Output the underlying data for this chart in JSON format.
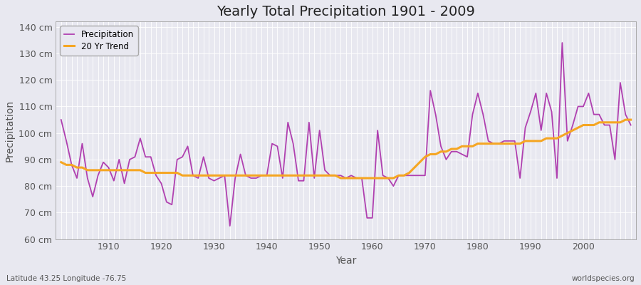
{
  "title": "Yearly Total Precipitation 1901 - 2009",
  "xlabel": "Year",
  "ylabel": "Precipitation",
  "subtitle": "Latitude 43.25 Longitude -76.75",
  "watermark": "worldspecies.org",
  "ylim": [
    60,
    142
  ],
  "xlim": [
    1900,
    2010
  ],
  "ytick_vals": [
    60,
    70,
    80,
    90,
    100,
    110,
    120,
    130,
    140
  ],
  "xtick_vals": [
    1910,
    1920,
    1930,
    1940,
    1950,
    1960,
    1970,
    1980,
    1990,
    2000
  ],
  "years": [
    1901,
    1902,
    1903,
    1904,
    1905,
    1906,
    1907,
    1908,
    1909,
    1910,
    1911,
    1912,
    1913,
    1914,
    1915,
    1916,
    1917,
    1918,
    1919,
    1920,
    1921,
    1922,
    1923,
    1924,
    1925,
    1926,
    1927,
    1928,
    1929,
    1930,
    1931,
    1932,
    1933,
    1934,
    1935,
    1936,
    1937,
    1938,
    1939,
    1940,
    1941,
    1942,
    1943,
    1944,
    1945,
    1946,
    1947,
    1948,
    1949,
    1950,
    1951,
    1952,
    1953,
    1954,
    1955,
    1956,
    1957,
    1958,
    1959,
    1960,
    1961,
    1962,
    1963,
    1964,
    1965,
    1966,
    1967,
    1968,
    1969,
    1970,
    1971,
    1972,
    1973,
    1974,
    1975,
    1976,
    1977,
    1978,
    1979,
    1980,
    1981,
    1982,
    1983,
    1984,
    1985,
    1986,
    1987,
    1988,
    1989,
    1990,
    1991,
    1992,
    1993,
    1994,
    1995,
    1996,
    1997,
    1998,
    1999,
    2000,
    2001,
    2002,
    2003,
    2004,
    2005,
    2006,
    2007,
    2008,
    2009
  ],
  "precipitation": [
    105,
    97,
    88,
    83,
    96,
    83,
    76,
    84,
    89,
    87,
    82,
    90,
    81,
    90,
    91,
    98,
    91,
    91,
    84,
    81,
    74,
    73,
    90,
    91,
    95,
    84,
    83,
    91,
    83,
    82,
    83,
    84,
    65,
    83,
    92,
    84,
    83,
    83,
    84,
    84,
    96,
    95,
    83,
    104,
    96,
    82,
    82,
    104,
    83,
    101,
    86,
    84,
    84,
    84,
    83,
    84,
    83,
    83,
    68,
    68,
    101,
    84,
    83,
    80,
    84,
    84,
    84,
    84,
    84,
    84,
    116,
    107,
    95,
    90,
    93,
    93,
    92,
    91,
    107,
    115,
    107,
    97,
    96,
    96,
    97,
    97,
    97,
    83,
    102,
    108,
    115,
    101,
    115,
    108,
    83,
    134,
    97,
    103,
    110,
    110,
    115,
    107,
    107,
    103,
    103,
    90,
    119,
    107,
    103
  ],
  "trend": [
    89,
    88,
    88,
    87,
    87,
    86,
    86,
    86,
    86,
    86,
    86,
    86,
    86,
    86,
    86,
    86,
    85,
    85,
    85,
    85,
    85,
    85,
    85,
    84,
    84,
    84,
    84,
    84,
    84,
    84,
    84,
    84,
    84,
    84,
    84,
    84,
    84,
    84,
    84,
    84,
    84,
    84,
    84,
    84,
    84,
    84,
    84,
    84,
    84,
    84,
    84,
    84,
    84,
    83,
    83,
    83,
    83,
    83,
    83,
    83,
    83,
    83,
    83,
    83,
    84,
    84,
    85,
    87,
    89,
    91,
    92,
    92,
    93,
    93,
    94,
    94,
    95,
    95,
    95,
    96,
    96,
    96,
    96,
    96,
    96,
    96,
    96,
    96,
    97,
    97,
    97,
    97,
    98,
    98,
    98,
    99,
    100,
    101,
    102,
    103,
    103,
    103,
    104,
    104,
    104,
    104,
    104,
    105,
    105
  ],
  "precip_color": "#b040b0",
  "trend_color": "#f5a623",
  "bg_color": "#e8e8f0",
  "plot_bg_color": "#e8e8f0",
  "grid_color": "#ffffff",
  "legend_bg": "#e8e8f0",
  "tick_color": "#555555",
  "title_fontsize": 14,
  "axis_fontsize": 10,
  "tick_fontsize": 9,
  "legend_fontsize": 8.5
}
